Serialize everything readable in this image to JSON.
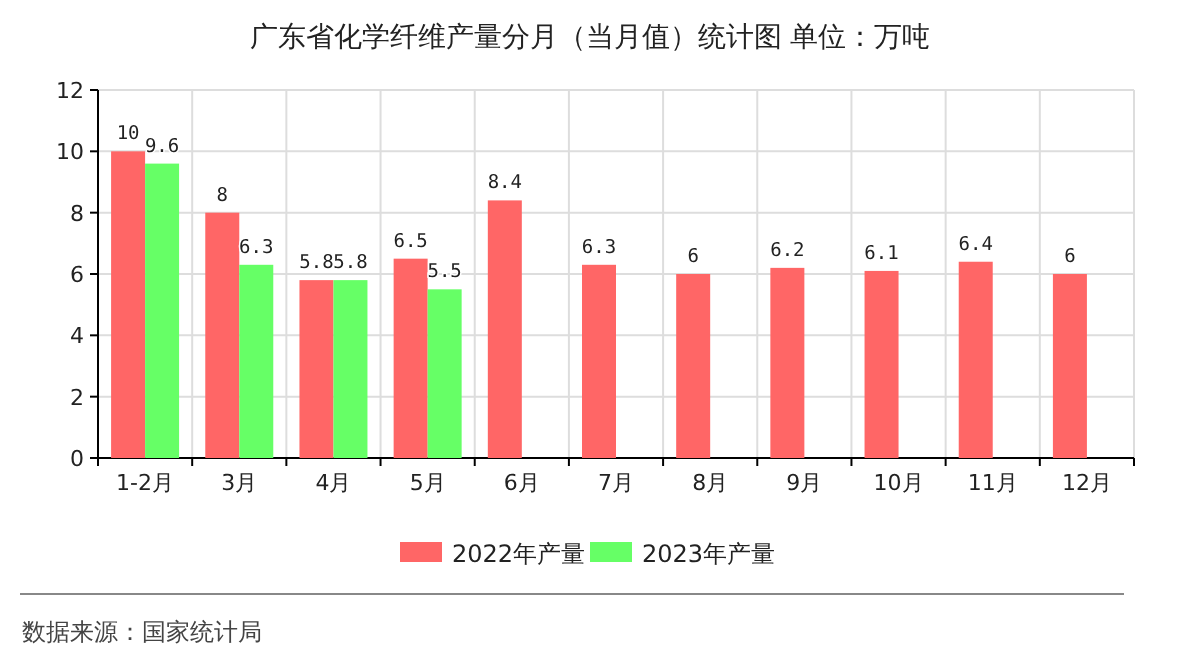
{
  "chart_data": {
    "type": "bar",
    "title": "广东省化学纤维产量分月（当月值）统计图 单位：万吨",
    "categories": [
      "1-2月",
      "3月",
      "4月",
      "5月",
      "6月",
      "7月",
      "8月",
      "9月",
      "10月",
      "11月",
      "12月"
    ],
    "series": [
      {
        "name": "2022年产量",
        "color": "#ff6666",
        "values": [
          10,
          8,
          5.8,
          6.5,
          8.4,
          6.3,
          6,
          6.2,
          6.1,
          6.4,
          6
        ]
      },
      {
        "name": "2023年产量",
        "color": "#66ff66",
        "values": [
          9.6,
          6.3,
          5.8,
          5.5,
          null,
          null,
          null,
          null,
          null,
          null,
          null
        ]
      }
    ],
    "ylim": [
      0,
      12
    ],
    "yticks": [
      0,
      2,
      4,
      6,
      8,
      10,
      12
    ],
    "grid": true,
    "legend": "bottom",
    "data_labels": true,
    "annotations": [
      "数据来源：国家统计局"
    ]
  }
}
